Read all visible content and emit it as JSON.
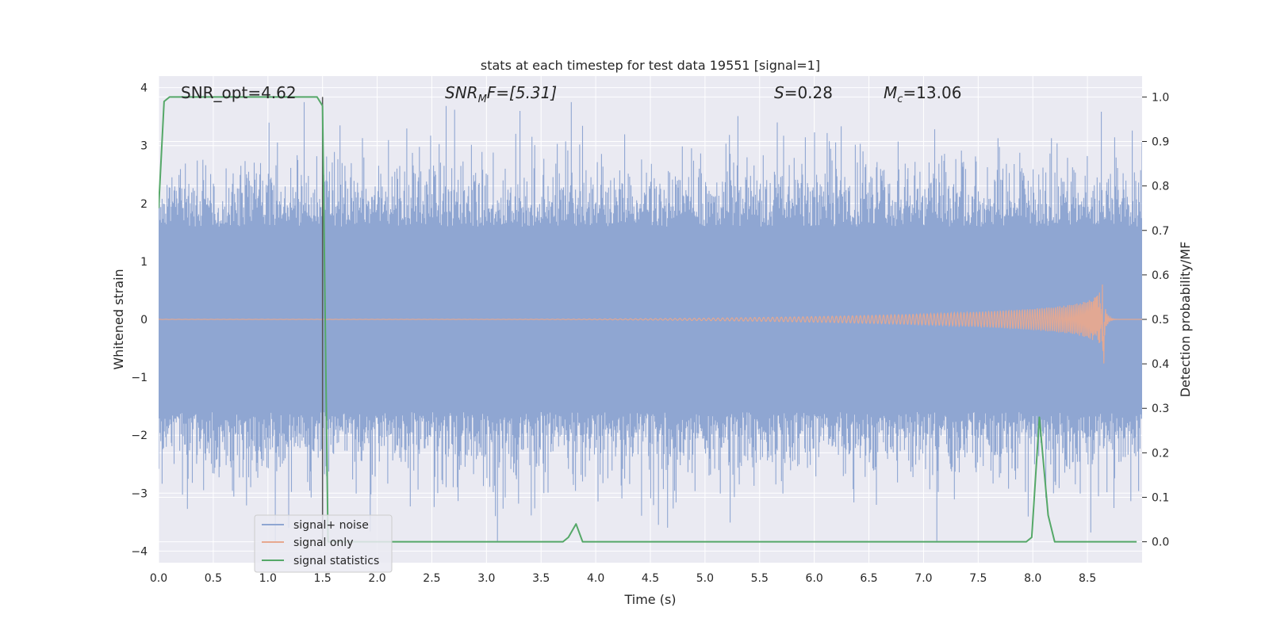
{
  "chart_data": {
    "type": "line",
    "title": "stats at each timestep for test data 19551 [signal=1]",
    "xlabel": "Time (s)",
    "ylabel": "Whitened strain",
    "y2label": "Detection probability/MF",
    "xlim": [
      0.0,
      9.0
    ],
    "ylim": [
      -4.2,
      4.2
    ],
    "y2lim": [
      -0.047,
      1.047
    ],
    "xticks": [
      "0.0",
      "0.5",
      "1.0",
      "1.5",
      "2.0",
      "2.5",
      "3.0",
      "3.5",
      "4.0",
      "4.5",
      "5.0",
      "5.5",
      "6.0",
      "6.5",
      "7.0",
      "7.5",
      "8.0",
      "8.5"
    ],
    "yticks": [
      "4",
      "3",
      "2",
      "1",
      "0",
      "−1",
      "−2",
      "−3",
      "−4"
    ],
    "y2ticks": [
      "1.0",
      "0.9",
      "0.8",
      "0.7",
      "0.6",
      "0.5",
      "0.4",
      "0.3",
      "0.2",
      "0.1",
      "0.0"
    ],
    "grid": true,
    "legend_position": "lower-left",
    "annotations": {
      "snr_opt": "SNR_opt=4.62",
      "snr_mf_base": "SNR",
      "snr_mf_sub": "M",
      "snr_mf_rest": "F=[5.31]",
      "s_var": "S",
      "s_rest": "=0.28",
      "mc_var": "M",
      "mc_sub": "c",
      "mc_rest": "=13.06"
    },
    "vertical_line_x": 1.5,
    "series": [
      {
        "name": "signal+ noise",
        "color": "#8fa6d2",
        "kind": "noise",
        "x_range": [
          0.0,
          9.0
        ],
        "amplitude_typical": 1.7,
        "peak_max": 3.75,
        "peak_min": -3.85
      },
      {
        "name": "signal only",
        "color": "#e7a88f",
        "kind": "chirp",
        "x_range": [
          0.0,
          8.65
        ],
        "peak_amplitude": 0.9,
        "merger_time": 8.65
      },
      {
        "name": "signal statistics",
        "color": "#55a868",
        "kind": "probability",
        "axis": "right",
        "x": [
          0.0,
          0.05,
          0.1,
          0.15,
          0.2,
          0.3,
          0.5,
          0.8,
          1.0,
          1.2,
          1.4,
          1.45,
          1.5,
          1.55,
          1.6,
          2.0,
          2.5,
          3.0,
          3.5,
          3.7,
          3.75,
          3.82,
          3.88,
          4.0,
          4.5,
          5.0,
          5.5,
          6.0,
          6.5,
          7.0,
          7.5,
          7.94,
          7.99,
          8.06,
          8.14,
          8.2,
          8.3,
          8.5,
          8.95
        ],
        "y": [
          0.75,
          0.99,
          1.0,
          1.0,
          1.0,
          1.0,
          1.0,
          1.0,
          1.0,
          1.0,
          1.0,
          1.0,
          0.98,
          0.0,
          0.0,
          0.0,
          0.0,
          0.0,
          0.0,
          0.0,
          0.01,
          0.04,
          0.0,
          0.0,
          0.0,
          0.0,
          0.0,
          0.0,
          0.0,
          0.0,
          0.0,
          0.0,
          0.01,
          0.28,
          0.06,
          0.0,
          0.0,
          0.0,
          0.0
        ]
      }
    ]
  }
}
